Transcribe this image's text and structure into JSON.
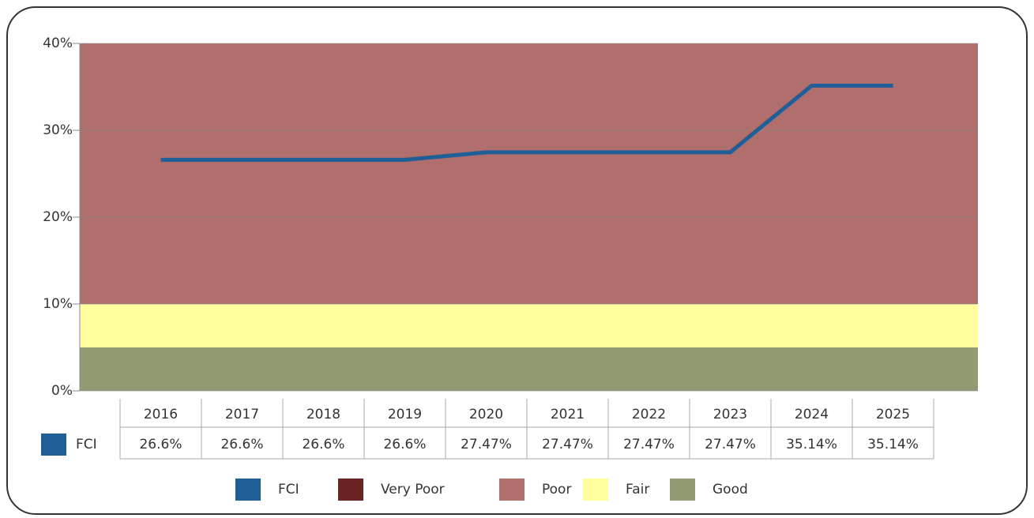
{
  "chart_data": {
    "type": "line",
    "categories": [
      "2016",
      "2017",
      "2018",
      "2019",
      "2020",
      "2021",
      "2022",
      "2023",
      "2024",
      "2025"
    ],
    "series": [
      {
        "name": "FCI",
        "color": "#1f5e96",
        "values": [
          26.6,
          26.6,
          26.6,
          26.6,
          27.47,
          27.47,
          27.47,
          27.47,
          35.14,
          35.14
        ],
        "value_labels": [
          "26.6%",
          "26.6%",
          "26.6%",
          "26.6%",
          "27.47%",
          "27.47%",
          "27.47%",
          "27.47%",
          "35.14%",
          "35.14%"
        ]
      }
    ],
    "bands": [
      {
        "name": "Very Poor",
        "color": "#6b2323"
      },
      {
        "name": "Poor",
        "color": "#b06f6c",
        "range": [
          10,
          40
        ]
      },
      {
        "name": "Fair",
        "color": "#ffff9e",
        "range": [
          5,
          10
        ]
      },
      {
        "name": "Good",
        "color": "#919c74",
        "range": [
          0,
          5
        ]
      }
    ],
    "ylim": [
      0,
      40
    ],
    "yticks": [
      {
        "value": 0,
        "label": "0%"
      },
      {
        "value": 10,
        "label": "10%"
      },
      {
        "value": 20,
        "label": "20%"
      },
      {
        "value": 30,
        "label": "30%"
      },
      {
        "value": 40,
        "label": "40%"
      }
    ],
    "grid": true
  }
}
